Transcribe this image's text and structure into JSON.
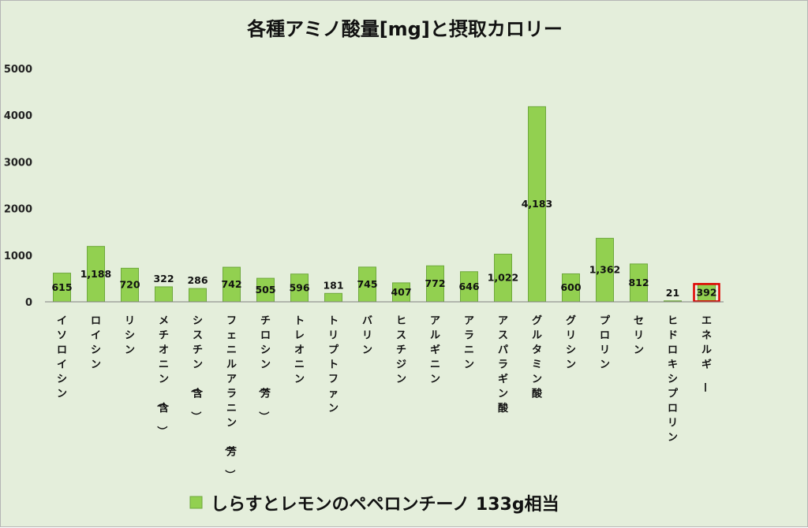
{
  "chart_data": {
    "type": "bar",
    "title": "各種アミノ酸量[mg]と摂取カロリー",
    "categories": [
      "イソロイシン",
      "ロイシン",
      "リシン",
      "メチオニン（含）",
      "シスチン（含）",
      "フェニルアラニン（芳）",
      "チロシン（芳）",
      "トレオニン",
      "トリプトファン",
      "バリン",
      "ヒスチジン",
      "アルギニン",
      "アラニン",
      "アスパラギン酸",
      "グルタミン酸",
      "グリシン",
      "プロリン",
      "セリン",
      "ヒドロキシプロリン",
      "エネルギー"
    ],
    "series": [
      {
        "name": "しらすとレモンのペペロンチーノ 133g相当",
        "values": [
          615,
          1188,
          720,
          322,
          286,
          742,
          505,
          596,
          181,
          745,
          407,
          772,
          646,
          1022,
          4183,
          600,
          1362,
          812,
          21,
          392
        ],
        "labels": [
          "615",
          "1,188",
          "720",
          "322",
          "286",
          "742",
          "505",
          "596",
          "181",
          "745",
          "407",
          "772",
          "646",
          "1,022",
          "4,183",
          "600",
          "1,362",
          "812",
          "21",
          "392"
        ]
      }
    ],
    "ylim": [
      0,
      5000
    ],
    "yticks": [
      0,
      1000,
      2000,
      3000,
      4000,
      5000
    ],
    "grid": false,
    "legend": "bottom",
    "highlight_index": 19,
    "colors": {
      "bar": "#92d050",
      "bar_border": "#6ea83c",
      "axis": "#7f7f7f",
      "highlight": "#e00000"
    }
  }
}
